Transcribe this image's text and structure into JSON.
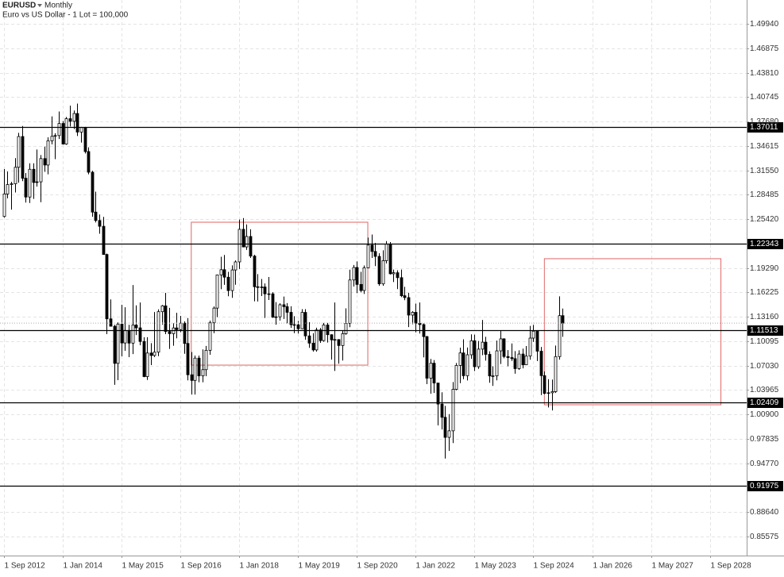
{
  "chart_data": {
    "type": "candlestick",
    "symbol": "EURUSD",
    "period": "Monthly",
    "subtitle": "Euro vs US Dollar - 1 Lot = 100,000",
    "up_color": "#ffffff",
    "down_color": "#000000",
    "grid": true,
    "x": [
      "2012-09-01",
      "2012-10-01",
      "2012-11-01",
      "2012-12-01",
      "2013-01-01",
      "2013-02-01",
      "2013-03-01",
      "2013-04-01",
      "2013-05-01",
      "2013-06-01",
      "2013-07-01",
      "2013-08-01",
      "2013-09-01",
      "2013-10-01",
      "2013-11-01",
      "2013-12-01",
      "2014-01-01",
      "2014-02-01",
      "2014-03-01",
      "2014-04-01",
      "2014-05-01",
      "2014-06-01",
      "2014-07-01",
      "2014-08-01",
      "2014-09-01",
      "2014-10-01",
      "2014-11-01",
      "2014-12-01",
      "2015-01-01",
      "2015-02-01",
      "2015-03-01",
      "2015-04-01",
      "2015-05-01",
      "2015-06-01",
      "2015-07-01",
      "2015-08-01",
      "2015-09-01",
      "2015-10-01",
      "2015-11-01",
      "2015-12-01",
      "2016-01-01",
      "2016-02-01",
      "2016-03-01",
      "2016-04-01",
      "2016-05-01",
      "2016-06-01",
      "2016-07-01",
      "2016-08-01",
      "2016-09-01",
      "2016-10-01",
      "2016-11-01",
      "2016-12-01",
      "2017-01-01",
      "2017-02-01",
      "2017-03-01",
      "2017-04-01",
      "2017-05-01",
      "2017-06-01",
      "2017-07-01",
      "2017-08-01",
      "2017-09-01",
      "2017-10-01",
      "2017-11-01",
      "2017-12-01",
      "2018-01-01",
      "2018-02-01",
      "2018-03-01",
      "2018-04-01",
      "2018-05-01",
      "2018-06-01",
      "2018-07-01",
      "2018-08-01",
      "2018-09-01",
      "2018-10-01",
      "2018-11-01",
      "2018-12-01",
      "2019-01-01",
      "2019-02-01",
      "2019-03-01",
      "2019-04-01",
      "2019-05-01",
      "2019-06-01",
      "2019-07-01",
      "2019-08-01",
      "2019-09-01",
      "2019-10-01",
      "2019-11-01",
      "2019-12-01",
      "2020-01-01",
      "2020-02-01",
      "2020-03-01",
      "2020-04-01",
      "2020-05-01",
      "2020-06-01",
      "2020-07-01",
      "2020-08-01",
      "2020-09-01",
      "2020-10-01",
      "2020-11-01",
      "2020-12-01",
      "2021-01-01",
      "2021-02-01",
      "2021-03-01",
      "2021-04-01",
      "2021-05-01",
      "2021-06-01",
      "2021-07-01",
      "2021-08-01",
      "2021-09-01",
      "2021-10-01",
      "2021-11-01",
      "2021-12-01",
      "2022-01-01",
      "2022-02-01",
      "2022-03-01",
      "2022-04-01",
      "2022-05-01",
      "2022-06-01",
      "2022-07-01",
      "2022-08-01",
      "2022-09-01",
      "2022-10-01",
      "2022-11-01",
      "2022-12-01",
      "2023-01-01",
      "2023-02-01",
      "2023-03-01",
      "2023-04-01",
      "2023-05-01",
      "2023-06-01",
      "2023-07-01",
      "2023-08-01",
      "2023-09-01",
      "2023-10-01",
      "2023-11-01",
      "2023-12-01",
      "2024-01-01",
      "2024-02-01",
      "2024-03-01",
      "2024-04-01",
      "2024-05-01",
      "2024-06-01",
      "2024-07-01",
      "2024-08-01",
      "2024-09-01",
      "2024-10-01",
      "2024-11-01",
      "2024-12-01",
      "2025-01-01",
      "2025-02-01",
      "2025-03-01",
      "2025-04-01",
      "2025-05-01"
    ],
    "open": [
      1.2575,
      1.2858,
      1.2976,
      1.2986,
      1.3193,
      1.3579,
      1.3055,
      1.2819,
      1.3168,
      1.3002,
      1.301,
      1.3302,
      1.3221,
      1.3525,
      1.3582,
      1.3591,
      1.3743,
      1.3485,
      1.3803,
      1.377,
      1.3868,
      1.3635,
      1.3692,
      1.339,
      1.3131,
      1.263,
      1.2525,
      1.2452,
      1.2098,
      1.129,
      1.1197,
      1.0731,
      1.1224,
      1.0987,
      1.1145,
      1.0985,
      1.1212,
      1.1177,
      1.1006,
      1.0565,
      1.0861,
      1.083,
      1.0872,
      1.138,
      1.1453,
      1.1131,
      1.1104,
      1.1176,
      1.1155,
      1.1236,
      1.0981,
      1.0588,
      1.0517,
      1.0797,
      1.0574,
      1.0652,
      1.0895,
      1.1241,
      1.1425,
      1.1841,
      1.1907,
      1.1813,
      1.1645,
      1.1904,
      1.2005,
      1.2414,
      1.2193,
      1.2324,
      1.2078,
      1.1693,
      1.1684,
      1.169,
      1.1604,
      1.1604,
      1.1311,
      1.1315,
      1.1467,
      1.1443,
      1.1372,
      1.1217,
      1.1215,
      1.1166,
      1.1371,
      1.1076,
      1.0985,
      1.09,
      1.1151,
      1.1017,
      1.1213,
      1.1091,
      1.1026,
      1.103,
      1.0955,
      1.1104,
      1.1234,
      1.1778,
      1.1935,
      1.1722,
      1.1646,
      1.193,
      1.2216,
      1.2136,
      1.2074,
      1.1729,
      1.202,
      1.2228,
      1.1856,
      1.1869,
      1.1807,
      1.158,
      1.1557,
      1.1337,
      1.1372,
      1.1235,
      1.1218,
      1.1067,
      1.0545,
      1.0733,
      1.0484,
      1.022,
      1.0054,
      0.9802,
      0.9884,
      1.0405,
      1.0705,
      1.0862,
      1.0576,
      1.0839,
      1.1015,
      1.0689,
      1.091,
      1.0997,
      1.0844,
      1.0573,
      1.0574,
      1.0888,
      1.1039,
      1.0817,
      1.0804,
      1.079,
      1.0665,
      1.0848,
      1.0713,
      1.0823,
      1.1048,
      1.1135,
      1.0884,
      1.0577,
      1.0354,
      1.0362,
      1.0376,
      1.0816,
      1.133
    ],
    "high": [
      1.3171,
      1.314,
      1.301,
      1.3308,
      1.3625,
      1.3711,
      1.3121,
      1.3243,
      1.3243,
      1.3416,
      1.3346,
      1.3452,
      1.3569,
      1.3832,
      1.362,
      1.3893,
      1.3774,
      1.3824,
      1.3967,
      1.3905,
      1.3993,
      1.37,
      1.37,
      1.3444,
      1.315,
      1.2887,
      1.26,
      1.257,
      1.211,
      1.1534,
      1.1215,
      1.1245,
      1.1467,
      1.1436,
      1.1215,
      1.1714,
      1.1459,
      1.1495,
      1.1059,
      1.106,
      1.0985,
      1.1376,
      1.141,
      1.1464,
      1.1616,
      1.1428,
      1.1234,
      1.1366,
      1.1327,
      1.1259,
      1.13,
      1.0874,
      1.0829,
      1.0829,
      1.0906,
      1.095,
      1.1268,
      1.1445,
      1.1846,
      1.207,
      1.2092,
      1.188,
      1.1961,
      1.2023,
      1.2537,
      1.2555,
      1.2476,
      1.2414,
      1.2095,
      1.1852,
      1.1791,
      1.1734,
      1.1815,
      1.1625,
      1.15,
      1.1486,
      1.157,
      1.1488,
      1.1448,
      1.1324,
      1.1264,
      1.1412,
      1.1412,
      1.1249,
      1.1109,
      1.1179,
      1.1175,
      1.1239,
      1.1239,
      1.1096,
      1.1495,
      1.1035,
      1.1146,
      1.1422,
      1.1908,
      1.1966,
      1.2011,
      1.188,
      1.196,
      1.231,
      1.2349,
      1.2243,
      1.2113,
      1.215,
      1.2266,
      1.2254,
      1.1909,
      1.19,
      1.1909,
      1.1692,
      1.1616,
      1.1386,
      1.1482,
      1.1495,
      1.1233,
      1.1076,
      1.0787,
      1.0773,
      1.0486,
      1.0368,
      1.0198,
      1.0094,
      1.0497,
      1.0736,
      1.0929,
      1.1033,
      1.093,
      1.1095,
      1.1092,
      1.1012,
      1.1276,
      1.1065,
      1.0882,
      1.0695,
      1.1017,
      1.114,
      1.1046,
      1.0897,
      1.0981,
      1.0885,
      1.0895,
      1.0916,
      1.0948,
      1.1202,
      1.1214,
      1.1144,
      1.0937,
      1.063,
      1.0533,
      1.0528,
      1.0955,
      1.1573,
      1.142
    ],
    "low": [
      1.2562,
      1.2803,
      1.2661,
      1.2877,
      1.3,
      1.3019,
      1.275,
      1.2745,
      1.2796,
      1.295,
      1.2755,
      1.3136,
      1.3105,
      1.3481,
      1.3295,
      1.3548,
      1.3478,
      1.3476,
      1.3705,
      1.3673,
      1.3585,
      1.3503,
      1.3366,
      1.3105,
      1.2571,
      1.25,
      1.2358,
      1.2097,
      1.1098,
      1.1196,
      1.0462,
      1.052,
      1.0819,
      1.0889,
      1.0809,
      1.0848,
      1.1087,
      1.0959,
      1.0557,
      1.0523,
      1.071,
      1.081,
      1.0821,
      1.1217,
      1.1098,
      1.0912,
      1.0952,
      1.1046,
      1.1122,
      1.0851,
      1.0517,
      1.034,
      1.034,
      1.0494,
      1.0494,
      1.057,
      1.0839,
      1.111,
      1.1312,
      1.1662,
      1.1717,
      1.1574,
      1.1554,
      1.1718,
      1.1916,
      1.2188,
      1.2155,
      1.2055,
      1.151,
      1.1508,
      1.1576,
      1.1301,
      1.1526,
      1.1302,
      1.1216,
      1.1269,
      1.1289,
      1.1234,
      1.1176,
      1.111,
      1.1106,
      1.116,
      1.1028,
      1.0926,
      1.0879,
      1.0879,
      1.0989,
      1.1003,
      1.0992,
      1.0778,
      1.0636,
      1.0727,
      1.0767,
      1.109,
      1.1185,
      1.1696,
      1.1612,
      1.1622,
      1.1603,
      1.1925,
      1.2054,
      1.1952,
      1.1704,
      1.1704,
      1.1986,
      1.1847,
      1.1752,
      1.1664,
      1.1563,
      1.1524,
      1.1186,
      1.1222,
      1.1121,
      1.1106,
      1.0806,
      1.047,
      1.0349,
      1.0359,
      0.9952,
      0.9901,
      0.9536,
      0.9632,
      0.973,
      1.0393,
      1.0483,
      1.0533,
      1.0516,
      1.0788,
      1.0635,
      1.0662,
      1.0834,
      1.0766,
      1.0488,
      1.0448,
      1.0517,
      1.0723,
      1.0795,
      1.0695,
      1.0762,
      1.0601,
      1.065,
      1.0668,
      1.0709,
      1.0777,
      1.1001,
      1.0761,
      1.0333,
      1.0343,
      1.0178,
      1.014,
      1.036,
      1.0778,
      1.1065
    ],
    "close": [
      1.2858,
      1.2976,
      1.2986,
      1.3193,
      1.3579,
      1.3055,
      1.2819,
      1.3168,
      1.3002,
      1.301,
      1.3302,
      1.3221,
      1.3525,
      1.3582,
      1.3591,
      1.3743,
      1.3485,
      1.3803,
      1.377,
      1.3868,
      1.3635,
      1.3692,
      1.339,
      1.3131,
      1.263,
      1.2525,
      1.2452,
      1.2098,
      1.129,
      1.1197,
      1.0731,
      1.1224,
      1.0987,
      1.1145,
      1.0985,
      1.1212,
      1.1177,
      1.1006,
      1.0565,
      1.0861,
      1.083,
      1.0872,
      1.138,
      1.1453,
      1.1131,
      1.1104,
      1.1176,
      1.1155,
      1.1236,
      1.0981,
      1.0588,
      1.0517,
      1.0797,
      1.0574,
      1.0652,
      1.0895,
      1.1241,
      1.1425,
      1.1841,
      1.1907,
      1.1813,
      1.1645,
      1.1904,
      1.2005,
      1.2414,
      1.2193,
      1.2324,
      1.2078,
      1.1693,
      1.1684,
      1.169,
      1.1604,
      1.1604,
      1.1311,
      1.1315,
      1.1467,
      1.1443,
      1.1372,
      1.1217,
      1.1215,
      1.1166,
      1.1371,
      1.1076,
      1.0985,
      1.09,
      1.1151,
      1.1017,
      1.1213,
      1.1091,
      1.1026,
      1.103,
      1.0955,
      1.1104,
      1.1234,
      1.1778,
      1.1935,
      1.1722,
      1.1646,
      1.193,
      1.2216,
      1.2136,
      1.2074,
      1.1729,
      1.202,
      1.2228,
      1.1856,
      1.1869,
      1.1807,
      1.158,
      1.1557,
      1.1337,
      1.1372,
      1.1235,
      1.1218,
      1.1067,
      1.0545,
      1.0733,
      1.0484,
      1.022,
      1.0054,
      0.9802,
      0.9884,
      1.0405,
      1.0705,
      1.0862,
      1.0576,
      1.0839,
      1.1015,
      1.0689,
      1.091,
      1.0997,
      1.0844,
      1.0573,
      1.0574,
      1.0888,
      1.1039,
      1.0817,
      1.0804,
      1.079,
      1.0665,
      1.0848,
      1.0713,
      1.0823,
      1.1048,
      1.1135,
      1.0884,
      1.0577,
      1.0354,
      1.0362,
      1.0376,
      1.0816,
      1.133,
      1.1236
    ],
    "xlim": [
      "2012-08-01",
      "2029-07-01"
    ],
    "xticks": [
      {
        "value": "2012-09-01",
        "label": "1 Sep 2012"
      },
      {
        "value": "2014-01-01",
        "label": "1 Jan 2014"
      },
      {
        "value": "2015-05-01",
        "label": "1 May 2015"
      },
      {
        "value": "2016-09-01",
        "label": "1 Sep 2016"
      },
      {
        "value": "2018-01-01",
        "label": "1 Jan 2018"
      },
      {
        "value": "2019-05-01",
        "label": "1 May 2019"
      },
      {
        "value": "2020-09-01",
        "label": "1 Sep 2020"
      },
      {
        "value": "2022-01-01",
        "label": "1 Jan 2022"
      },
      {
        "value": "2023-05-01",
        "label": "1 May 2023"
      },
      {
        "value": "2024-09-01",
        "label": "1 Sep 2024"
      },
      {
        "value": "2026-01-01",
        "label": "1 Jan 2026"
      },
      {
        "value": "2027-05-01",
        "label": "1 May 2027"
      },
      {
        "value": "2028-09-01",
        "label": "1 Sep 2028"
      }
    ],
    "ylim": [
      0.8318,
      1.5293
    ],
    "yticks": [
      {
        "value": 1.4994,
        "label": "1.49940"
      },
      {
        "value": 1.46875,
        "label": "1.46875"
      },
      {
        "value": 1.4381,
        "label": "1.43810"
      },
      {
        "value": 1.40745,
        "label": "1.40745"
      },
      {
        "value": 1.3768,
        "label": "1.37680"
      },
      {
        "value": 1.34615,
        "label": "1.34615"
      },
      {
        "value": 1.3155,
        "label": "1.31550"
      },
      {
        "value": 1.28485,
        "label": "1.28485"
      },
      {
        "value": 1.2542,
        "label": "1.25420"
      },
      {
        "value": 1.1929,
        "label": "1.19290"
      },
      {
        "value": 1.16225,
        "label": "1.16225"
      },
      {
        "value": 1.1316,
        "label": "1.13160"
      },
      {
        "value": 1.10095,
        "label": "1.10095"
      },
      {
        "value": 1.0703,
        "label": "1.07030"
      },
      {
        "value": 1.03965,
        "label": "1.03965"
      },
      {
        "value": 1.009,
        "label": "1.00900"
      },
      {
        "value": 0.97835,
        "label": "0.97835"
      },
      {
        "value": 0.9477,
        "label": "0.94770"
      },
      {
        "value": 0.8864,
        "label": "0.88640"
      },
      {
        "value": 0.85575,
        "label": "0.85575"
      }
    ],
    "hlines": [
      1.37011,
      1.22343,
      1.11513,
      1.02409,
      0.91975
    ],
    "rectangles": [
      {
        "x0": "2016-12-01",
        "x1": "2020-12-01",
        "y0": 1.0709,
        "y1": 1.2503,
        "color": "#e06666"
      },
      {
        "x0": "2024-12-01",
        "x1": "2028-12-01",
        "y0": 1.0211,
        "y1": 1.2045,
        "color": "#e06666"
      }
    ]
  }
}
